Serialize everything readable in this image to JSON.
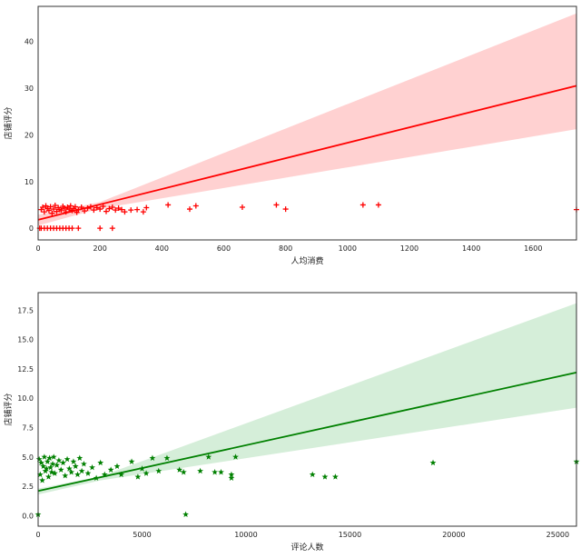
{
  "chart_data": [
    {
      "type": "scatter",
      "subtype": "regression",
      "xlabel": "人均消费",
      "ylabel": "店铺评分",
      "xlim": [
        0,
        1740
      ],
      "ylim": [
        -2.5,
        47.5
      ],
      "x_ticks": [
        0,
        200,
        400,
        600,
        800,
        1000,
        1200,
        1400,
        1600
      ],
      "y_ticks": [
        0,
        10,
        20,
        30,
        40
      ],
      "x_tick_labels": [
        "0",
        "200",
        "400",
        "600",
        "800",
        "1000",
        "1200",
        "1400",
        "1600"
      ],
      "y_tick_labels": [
        "0",
        "10",
        "20",
        "30",
        "40"
      ],
      "marker": "+",
      "color": "#ff0000",
      "band_color": "#ffb3b3",
      "grid": false,
      "regression_line": {
        "x": [
          0,
          1740
        ],
        "y": [
          1.8,
          30.5
        ]
      },
      "confidence_band": {
        "x": [
          0,
          200,
          1740
        ],
        "lower": [
          0.6,
          4.2,
          21.2
        ],
        "upper": [
          2.9,
          5.6,
          46.0
        ]
      },
      "points": [
        [
          10,
          4.0
        ],
        [
          15,
          4.5
        ],
        [
          20,
          3.5
        ],
        [
          25,
          4.8
        ],
        [
          30,
          4.2
        ],
        [
          35,
          3.8
        ],
        [
          40,
          4.6
        ],
        [
          45,
          3.2
        ],
        [
          50,
          4.1
        ],
        [
          55,
          4.9
        ],
        [
          60,
          3.6
        ],
        [
          65,
          4.4
        ],
        [
          70,
          4.0
        ],
        [
          75,
          3.9
        ],
        [
          80,
          4.7
        ],
        [
          85,
          4.3
        ],
        [
          90,
          3.5
        ],
        [
          95,
          4.5
        ],
        [
          100,
          4.1
        ],
        [
          105,
          4.8
        ],
        [
          110,
          3.8
        ],
        [
          115,
          4.2
        ],
        [
          120,
          4.6
        ],
        [
          125,
          3.4
        ],
        [
          130,
          4.0
        ],
        [
          140,
          4.5
        ],
        [
          150,
          3.7
        ],
        [
          160,
          4.3
        ],
        [
          170,
          4.6
        ],
        [
          180,
          3.9
        ],
        [
          190,
          4.4
        ],
        [
          200,
          4.1
        ],
        [
          210,
          4.7
        ],
        [
          220,
          3.6
        ],
        [
          230,
          4.2
        ],
        [
          240,
          4.5
        ],
        [
          250,
          3.9
        ],
        [
          260,
          4.3
        ],
        [
          270,
          4.0
        ],
        [
          280,
          3.5
        ],
        [
          300,
          3.9
        ],
        [
          320,
          4.0
        ],
        [
          340,
          3.5
        ],
        [
          350,
          4.4
        ],
        [
          420,
          5.0
        ],
        [
          490,
          4.1
        ],
        [
          510,
          4.8
        ],
        [
          660,
          4.5
        ],
        [
          770,
          5.0
        ],
        [
          800,
          4.1
        ],
        [
          1050,
          5.0
        ],
        [
          1100,
          5.0
        ],
        [
          1740,
          4.0
        ],
        [
          5,
          0
        ],
        [
          10,
          0
        ],
        [
          20,
          0
        ],
        [
          30,
          0
        ],
        [
          40,
          0
        ],
        [
          50,
          0
        ],
        [
          60,
          0
        ],
        [
          70,
          0
        ],
        [
          80,
          0
        ],
        [
          90,
          0
        ],
        [
          100,
          0
        ],
        [
          110,
          0
        ],
        [
          130,
          0
        ],
        [
          200,
          0
        ],
        [
          240,
          0
        ]
      ]
    },
    {
      "type": "scatter",
      "subtype": "regression",
      "xlabel": "评论人数",
      "ylabel": "店铺评分",
      "xlim": [
        0,
        25900
      ],
      "ylim": [
        -0.9,
        19.0
      ],
      "x_ticks": [
        0,
        5000,
        10000,
        15000,
        20000,
        25000
      ],
      "y_ticks": [
        0,
        2.5,
        5,
        7.5,
        10,
        12.5,
        15,
        17.5
      ],
      "x_tick_labels": [
        "0",
        "5000",
        "10000",
        "15000",
        "20000",
        "25000"
      ],
      "y_tick_labels": [
        "0.0",
        "2.5",
        "5.0",
        "7.5",
        "10.0",
        "12.5",
        "15.0",
        "17.5"
      ],
      "marker": "*",
      "color": "#008000",
      "band_color": "#b9e2bf",
      "grid": false,
      "regression_line": {
        "x": [
          0,
          25900
        ],
        "y": [
          2.1,
          12.2
        ]
      },
      "confidence_band": {
        "x": [
          0,
          3000,
          25900
        ],
        "lower": [
          1.8,
          3.0,
          9.2
        ],
        "upper": [
          2.3,
          3.35,
          18.1
        ]
      },
      "points": [
        [
          50,
          4.8
        ],
        [
          100,
          3.5
        ],
        [
          150,
          4.5
        ],
        [
          200,
          3.0
        ],
        [
          250,
          4.2
        ],
        [
          300,
          5.0
        ],
        [
          350,
          3.8
        ],
        [
          400,
          4.0
        ],
        [
          450,
          4.6
        ],
        [
          500,
          3.3
        ],
        [
          550,
          4.9
        ],
        [
          600,
          4.1
        ],
        [
          650,
          3.7
        ],
        [
          700,
          4.4
        ],
        [
          750,
          5.0
        ],
        [
          800,
          3.6
        ],
        [
          900,
          4.3
        ],
        [
          1000,
          4.7
        ],
        [
          1100,
          3.9
        ],
        [
          1200,
          4.5
        ],
        [
          1300,
          3.4
        ],
        [
          1400,
          4.8
        ],
        [
          1500,
          4.0
        ],
        [
          1600,
          3.7
        ],
        [
          1700,
          4.6
        ],
        [
          1800,
          4.2
        ],
        [
          1900,
          3.5
        ],
        [
          2000,
          4.9
        ],
        [
          2100,
          3.8
        ],
        [
          2200,
          4.4
        ],
        [
          2400,
          3.6
        ],
        [
          2600,
          4.1
        ],
        [
          2800,
          3.2
        ],
        [
          3000,
          4.5
        ],
        [
          3200,
          3.5
        ],
        [
          3500,
          3.9
        ],
        [
          3800,
          4.2
        ],
        [
          4000,
          3.5
        ],
        [
          4500,
          4.6
        ],
        [
          4800,
          3.3
        ],
        [
          5000,
          4.0
        ],
        [
          5200,
          3.6
        ],
        [
          5500,
          4.9
        ],
        [
          5800,
          3.8
        ],
        [
          6200,
          4.9
        ],
        [
          6800,
          3.9
        ],
        [
          7000,
          3.7
        ],
        [
          7100,
          0.1
        ],
        [
          7800,
          3.8
        ],
        [
          8200,
          5.0
        ],
        [
          8500,
          3.7
        ],
        [
          8800,
          3.7
        ],
        [
          9300,
          3.5
        ],
        [
          9300,
          3.2
        ],
        [
          9500,
          5.0
        ],
        [
          13200,
          3.5
        ],
        [
          13800,
          3.3
        ],
        [
          14300,
          3.3
        ],
        [
          19000,
          4.5
        ],
        [
          25900,
          4.6
        ],
        [
          0,
          0.1
        ]
      ]
    }
  ]
}
